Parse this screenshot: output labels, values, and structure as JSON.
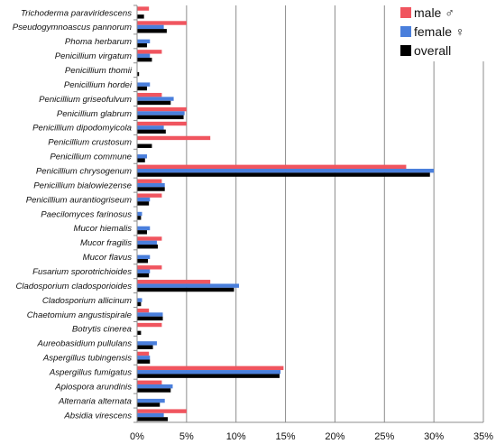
{
  "chart_data": {
    "type": "bar",
    "orientation": "horizontal",
    "categories": [
      "Trichoderma paraviridescens",
      "Pseudogymnoascus pannorum",
      "Phoma herbarum",
      "Penicillium virgatum",
      "Penicillium thomii",
      "Penicillium hordei",
      "Penicillium griseofulvum",
      "Penicillium glabrum",
      "Penicillium dipodomyicola",
      "Penicillium crustosum",
      "Penicillium commune",
      "Penicillium chrysogenum",
      "Penicillium bialowiezense",
      "Penicillium aurantiogriseum",
      "Paecilomyces farinosus",
      "Mucor hiemalis",
      "Mucor fragilis",
      "Mucor flavus",
      "Fusarium sporotrichioides",
      "Cladosporium cladosporioides",
      "Cladosporium allicinum",
      "Chaetomium angustispirale",
      "Botrytis cinerea",
      "Aureobasidium pullulans",
      "Aspergillus tubingensis",
      "Aspergillus fumigatus",
      "Apiospora arundinis",
      "Alternaria alternata",
      "Absidia virescens"
    ],
    "series": [
      {
        "name": "male ♂",
        "color": "#f0555f",
        "values": [
          1.2,
          5.0,
          0.0,
          2.5,
          0.0,
          0.0,
          2.5,
          5.0,
          5.0,
          7.4,
          0.0,
          27.2,
          2.5,
          2.5,
          0.0,
          0.0,
          2.5,
          0.0,
          2.5,
          7.4,
          0.0,
          1.2,
          2.5,
          0.0,
          1.2,
          14.8,
          2.5,
          0.0,
          5.0
        ]
      },
      {
        "name": "female ♀",
        "color": "#4a7fdc",
        "values": [
          0.0,
          2.7,
          1.3,
          1.3,
          0.0,
          1.3,
          3.7,
          4.8,
          2.7,
          0.0,
          1.0,
          30.0,
          2.8,
          1.3,
          0.5,
          1.3,
          2.0,
          1.3,
          1.3,
          10.3,
          0.5,
          2.6,
          0.0,
          2.0,
          1.3,
          14.5,
          3.6,
          2.8,
          2.7
        ]
      },
      {
        "name": "overall",
        "color": "#000000",
        "values": [
          0.7,
          3.0,
          1.0,
          1.5,
          0.2,
          1.0,
          3.4,
          4.7,
          2.9,
          1.5,
          0.8,
          29.6,
          2.8,
          1.2,
          0.4,
          1.0,
          2.1,
          1.1,
          1.2,
          9.8,
          0.4,
          2.6,
          0.4,
          1.6,
          1.3,
          14.4,
          3.4,
          2.3,
          3.1
        ]
      }
    ],
    "xlim": [
      0,
      35
    ],
    "x_ticks": [
      "0%",
      "5%",
      "10%",
      "15%",
      "20%",
      "25%",
      "30%",
      "35%"
    ],
    "grid": "vertical",
    "legend_position": "top-right"
  }
}
